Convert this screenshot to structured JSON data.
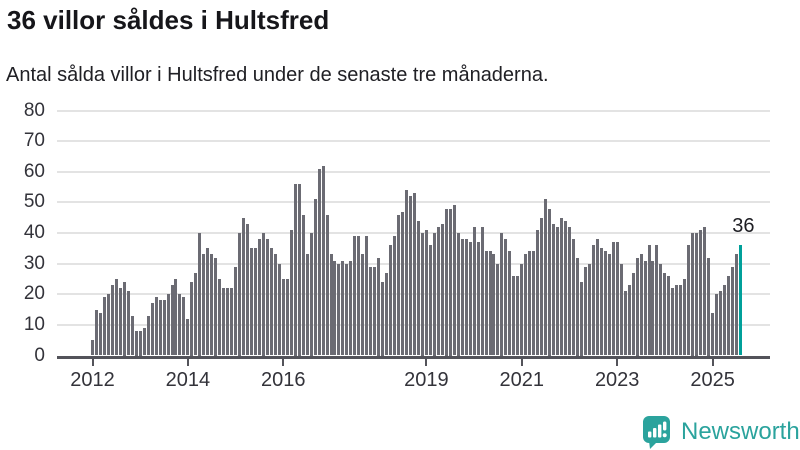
{
  "title": "36 villor såldes i Hultsfred",
  "subtitle": "Antal sålda villor i Hultsfred under de senaste tre månaderna.",
  "annotation": {
    "label": "36"
  },
  "branding": {
    "name": "Newsworthy",
    "icon": "newsworthy-bubble-chart-icon"
  },
  "colors": {
    "bar": "#6b6b73",
    "highlight": "#00a09a",
    "gridline": "#e3e3e3",
    "axis": "#53535a",
    "accent": "#2ba39d",
    "title_text": "#16161a",
    "tick_text": "#33333a"
  },
  "chart_data": {
    "type": "bar",
    "title": "36 villor såldes i Hultsfred",
    "subtitle": "Antal sålda villor i Hultsfred under de senaste tre månaderna.",
    "x_start": "2012-01",
    "x_freq": "monthly",
    "x_end": "2025-08",
    "ylim": [
      0,
      80
    ],
    "y_ticks": [
      0,
      10,
      20,
      30,
      40,
      50,
      60,
      70,
      80
    ],
    "grid": true,
    "legend": "none",
    "highlight_last_bar": true,
    "highlight_last_value": 36,
    "x_ticks": [
      {
        "label": "2012",
        "month_index": 0
      },
      {
        "label": "2014",
        "month_index": 24
      },
      {
        "label": "2016",
        "month_index": 48
      },
      {
        "label": "2019",
        "month_index": 84
      },
      {
        "label": "2021",
        "month_index": 108
      },
      {
        "label": "2023",
        "month_index": 132
      },
      {
        "label": "2025",
        "month_index": 156
      }
    ],
    "values": [
      5,
      15,
      14,
      19,
      20,
      23,
      25,
      22,
      24,
      21,
      13,
      8,
      8,
      9,
      13,
      17,
      19,
      18,
      18,
      20,
      23,
      25,
      20,
      19,
      12,
      24,
      27,
      40,
      33,
      35,
      33,
      32,
      25,
      22,
      22,
      22,
      29,
      40,
      45,
      43,
      35,
      35,
      38,
      40,
      38,
      35,
      33,
      30,
      25,
      25,
      41,
      56,
      56,
      46,
      33,
      40,
      51,
      61,
      62,
      46,
      33,
      31,
      30,
      31,
      30,
      31,
      39,
      39,
      33,
      39,
      29,
      29,
      32,
      24,
      27,
      36,
      39,
      46,
      47,
      54,
      52,
      53,
      44,
      40,
      41,
      36,
      40,
      42,
      43,
      48,
      48,
      49,
      40,
      38,
      38,
      37,
      42,
      37,
      42,
      34,
      34,
      33,
      30,
      40,
      38,
      34,
      26,
      26,
      30,
      33,
      34,
      34,
      41,
      45,
      51,
      48,
      43,
      42,
      45,
      44,
      42,
      38,
      32,
      24,
      29,
      30,
      36,
      38,
      35,
      34,
      33,
      37,
      37,
      30,
      21,
      23,
      27,
      32,
      33,
      31,
      36,
      31,
      36,
      30,
      27,
      26,
      22,
      23,
      23,
      25,
      36,
      40,
      40,
      41,
      42,
      32,
      14,
      20,
      21,
      23,
      26,
      29,
      33,
      36
    ]
  }
}
